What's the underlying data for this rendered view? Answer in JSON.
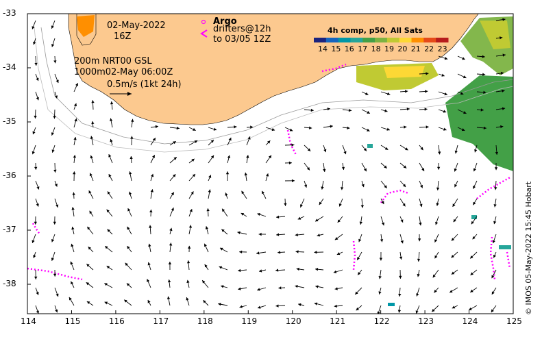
{
  "map": {
    "date": "02-May-2022",
    "hour": "16Z",
    "isobaths_line1": "200m  NRT00 GSL",
    "isobaths_line2": "1000m02-May 06:00Z",
    "scale_label": "0.5m/s (1kt 24h)",
    "argo_label": "Argo",
    "drifters_line1": "drifters@12h",
    "drifters_line2": "to 03/05 12Z",
    "colorbar_title": "4h comp, p50, All Sats",
    "colorbar_ticks": [
      "14",
      "15",
      "16",
      "17",
      "18",
      "19",
      "20",
      "21",
      "22",
      "23"
    ],
    "colorbar_colors": [
      "#1a237e",
      "#1565c0",
      "#0097a7",
      "#26a69a",
      "#43a047",
      "#7cb342",
      "#c0ca33",
      "#fdd835",
      "#ff8f00",
      "#e64a19",
      "#b71c1c"
    ],
    "credit": "© IMOS 05-May-2022 15:45 Hobart",
    "x_ticks": [
      "114",
      "115",
      "116",
      "117",
      "118",
      "119",
      "120",
      "121",
      "122",
      "123",
      "124",
      "125"
    ],
    "y_ticks": [
      "-33",
      "-34",
      "-35",
      "-36",
      "-37",
      "-38"
    ],
    "land_color": "#fcc98f",
    "argo_color": "#ff00ff"
  }
}
